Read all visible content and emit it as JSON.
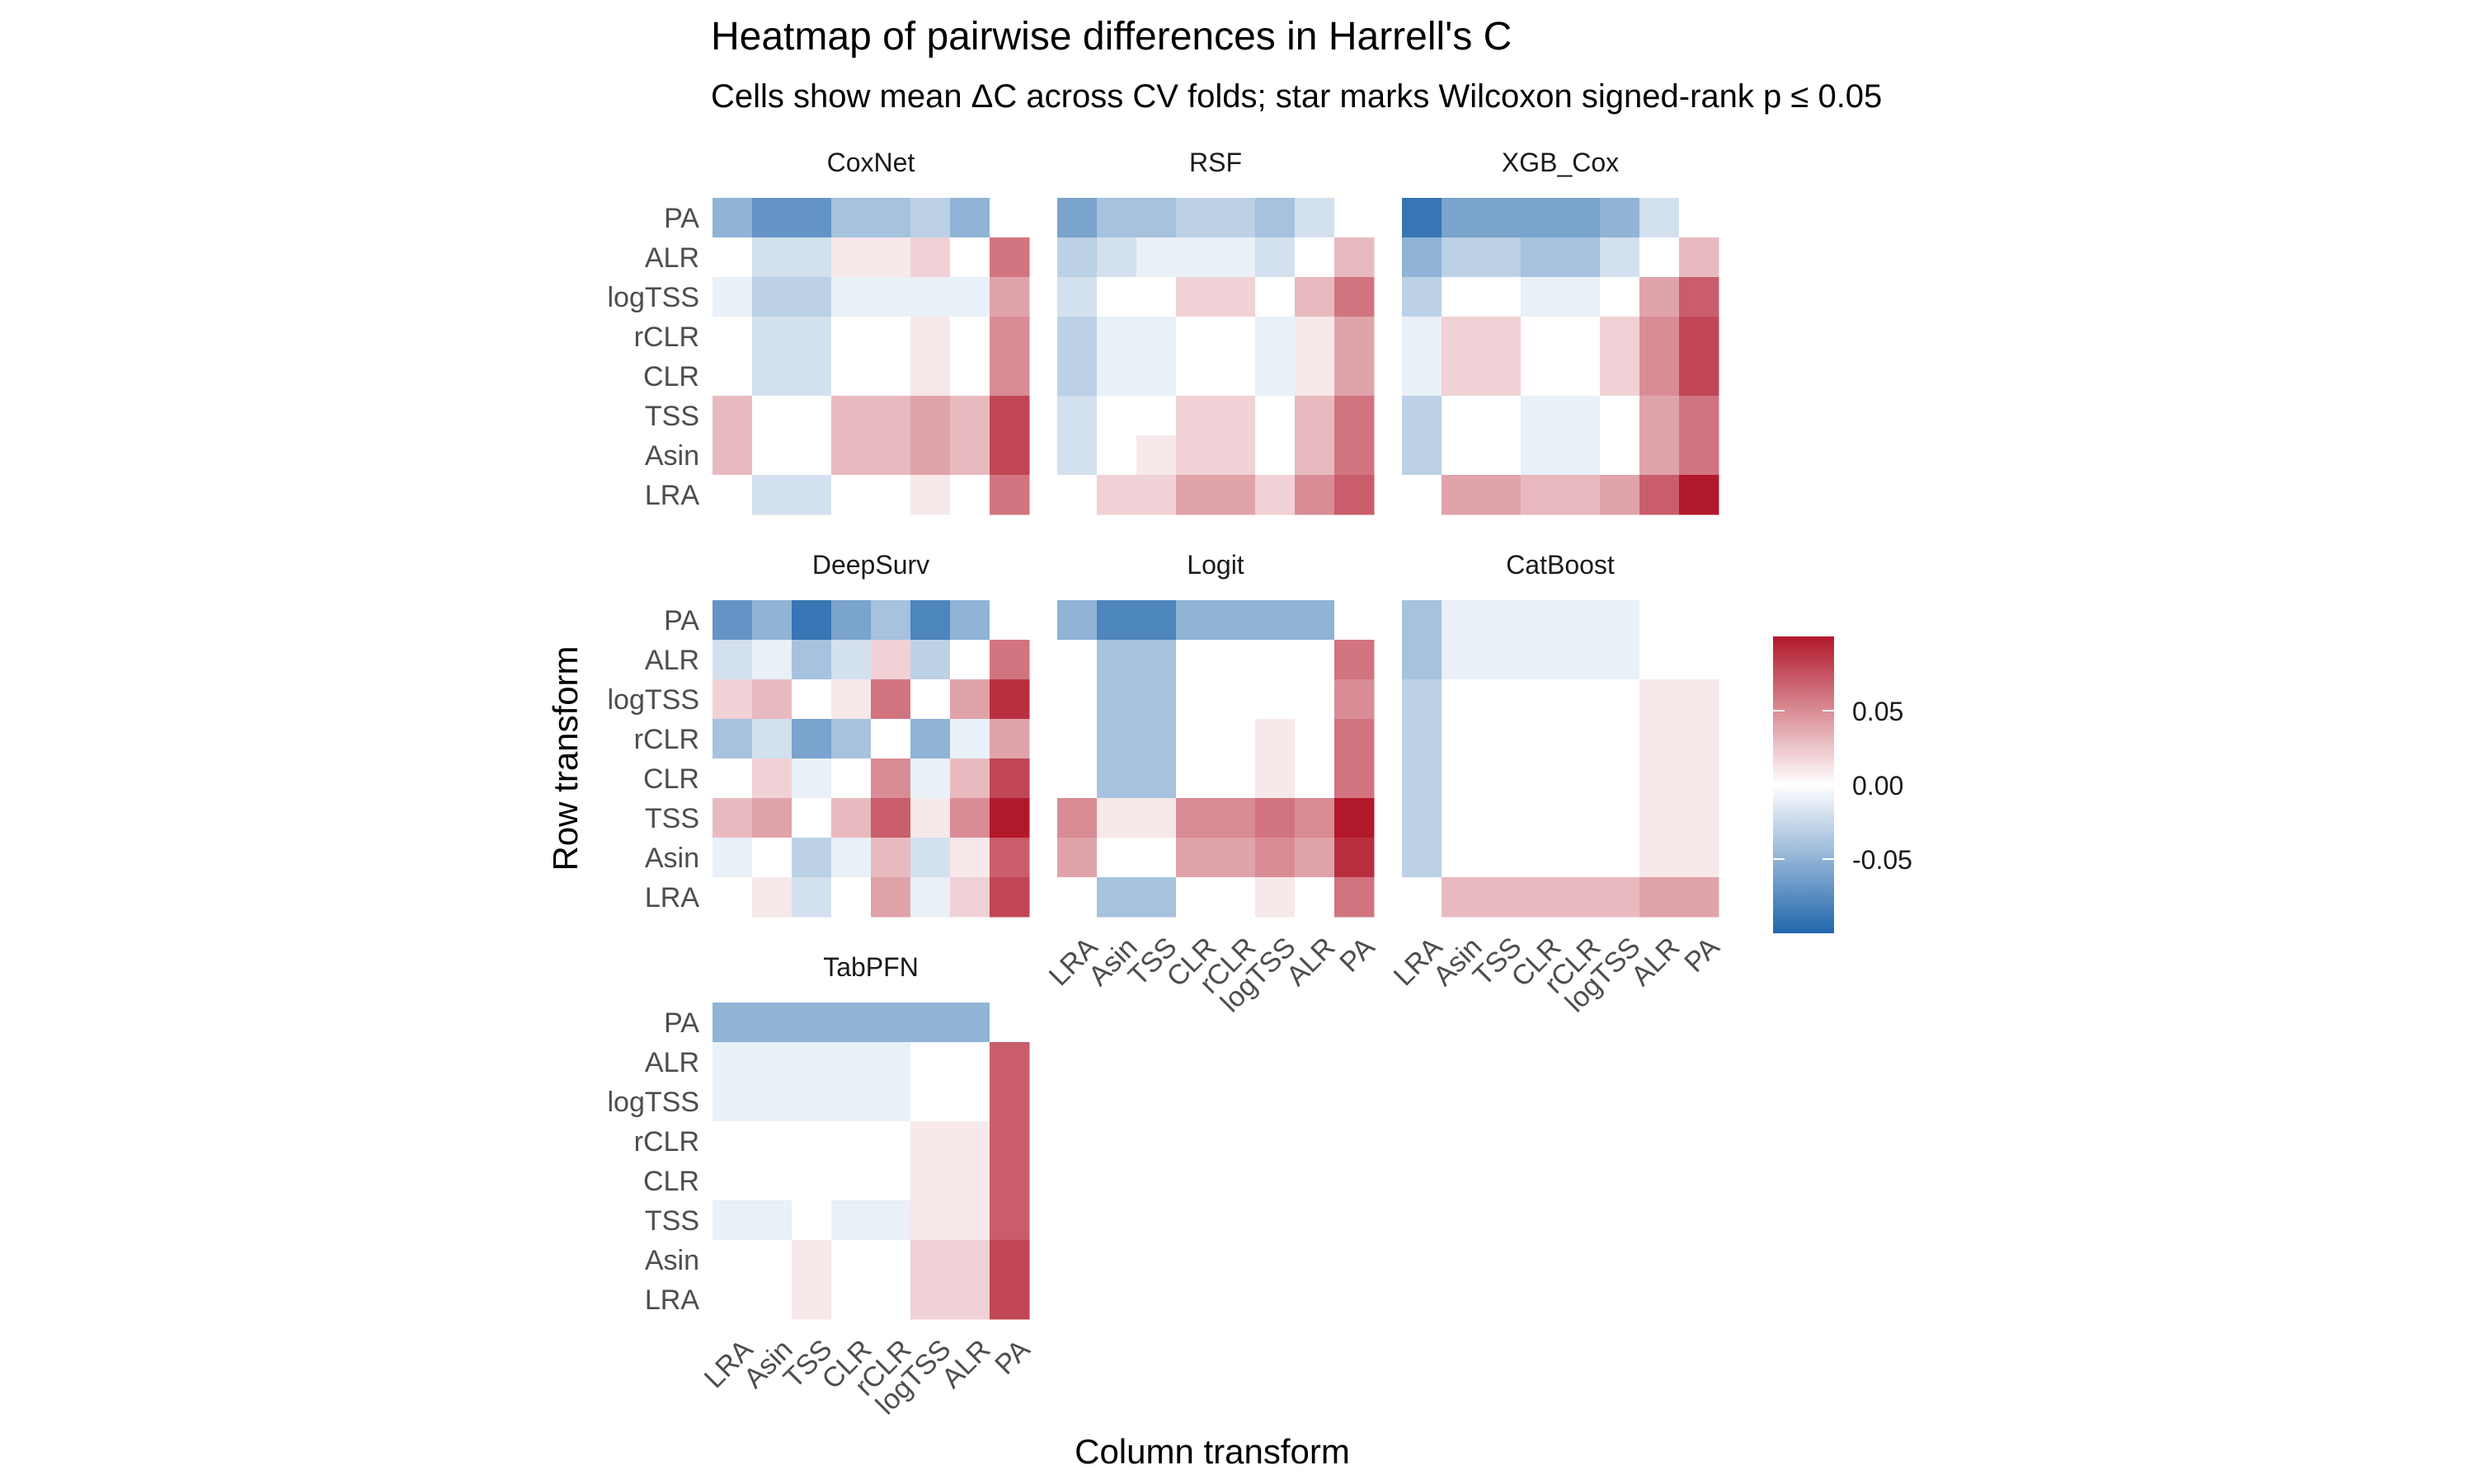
{
  "chart_data": {
    "type": "heatmap",
    "title": "Heatmap of pairwise differences in Harrell's C",
    "subtitle": "Cells show mean ΔC across CV folds; star marks Wilcoxon signed-rank p ≤ 0.05",
    "xlabel": "Column transform",
    "ylabel": "Row transform",
    "rows": [
      "PA",
      "ALR",
      "logTSS",
      "rCLR",
      "CLR",
      "TSS",
      "Asin",
      "LRA"
    ],
    "columns": [
      "LRA",
      "Asin",
      "TSS",
      "CLR",
      "rCLR",
      "logTSS",
      "ALR",
      "PA"
    ],
    "color_scale": {
      "min": -0.1,
      "mid": 0.0,
      "max": 0.1,
      "low_color": "#2166ac",
      "mid_color": "#ffffff",
      "high_color": "#b2182b",
      "legend_ticks": [
        0.05,
        0.0,
        -0.05
      ],
      "legend_labels": [
        "0.05",
        "0.00",
        "-0.05"
      ]
    },
    "panels": [
      {
        "name": "CoxNet",
        "values": [
          [
            -0.05,
            -0.07,
            -0.07,
            -0.04,
            -0.04,
            -0.03,
            -0.05,
            0.0
          ],
          [
            0.0,
            -0.02,
            -0.02,
            0.01,
            0.01,
            0.02,
            0.0,
            0.06
          ],
          [
            -0.01,
            -0.03,
            -0.03,
            -0.01,
            -0.01,
            -0.01,
            -0.01,
            0.04
          ],
          [
            0.0,
            -0.02,
            -0.02,
            0.0,
            0.0,
            0.01,
            0.0,
            0.05
          ],
          [
            0.0,
            -0.02,
            -0.02,
            0.0,
            0.0,
            0.01,
            0.0,
            0.05
          ],
          [
            0.03,
            0.0,
            0.0,
            0.03,
            0.03,
            0.04,
            0.03,
            0.08
          ],
          [
            0.03,
            0.0,
            0.0,
            0.03,
            0.03,
            0.04,
            0.03,
            0.08
          ],
          [
            0.0,
            -0.02,
            -0.02,
            0.0,
            0.0,
            0.01,
            0.0,
            0.06
          ]
        ]
      },
      {
        "name": "RSF",
        "values": [
          [
            -0.06,
            -0.04,
            -0.04,
            -0.03,
            -0.03,
            -0.04,
            -0.02,
            0.0
          ],
          [
            -0.03,
            -0.02,
            -0.01,
            -0.01,
            -0.01,
            -0.02,
            0.0,
            0.03
          ],
          [
            -0.02,
            0.0,
            0.0,
            0.02,
            0.02,
            0.0,
            0.03,
            0.06
          ],
          [
            -0.03,
            -0.01,
            -0.01,
            0.0,
            0.0,
            -0.01,
            0.01,
            0.04
          ],
          [
            -0.03,
            -0.01,
            -0.01,
            0.0,
            0.0,
            -0.01,
            0.01,
            0.04
          ],
          [
            -0.02,
            0.0,
            0.0,
            0.02,
            0.02,
            0.0,
            0.03,
            0.06
          ],
          [
            -0.02,
            0.0,
            0.01,
            0.02,
            0.02,
            0.0,
            0.03,
            0.06
          ],
          [
            0.0,
            0.02,
            0.02,
            0.04,
            0.04,
            0.02,
            0.05,
            0.07
          ]
        ]
      },
      {
        "name": "XGB_Cox",
        "values": [
          [
            -0.09,
            -0.06,
            -0.06,
            -0.06,
            -0.06,
            -0.05,
            -0.02,
            0.0
          ],
          [
            -0.05,
            -0.03,
            -0.03,
            -0.04,
            -0.04,
            -0.02,
            0.0,
            0.03
          ],
          [
            -0.03,
            0.0,
            0.0,
            -0.01,
            -0.01,
            0.0,
            0.04,
            0.07
          ],
          [
            -0.01,
            0.02,
            0.02,
            0.0,
            0.0,
            0.02,
            0.05,
            0.08
          ],
          [
            -0.01,
            0.02,
            0.02,
            0.0,
            0.0,
            0.02,
            0.05,
            0.08
          ],
          [
            -0.03,
            0.0,
            0.0,
            -0.01,
            -0.01,
            0.0,
            0.04,
            0.06
          ],
          [
            -0.03,
            0.0,
            0.0,
            -0.01,
            -0.01,
            0.0,
            0.04,
            0.06
          ],
          [
            0.0,
            0.04,
            0.04,
            0.03,
            0.03,
            0.04,
            0.07,
            0.1
          ]
        ]
      },
      {
        "name": "DeepSurv",
        "values": [
          [
            -0.07,
            -0.05,
            -0.09,
            -0.06,
            -0.04,
            -0.08,
            -0.05,
            0.0
          ],
          [
            -0.02,
            -0.01,
            -0.04,
            -0.02,
            0.02,
            -0.03,
            0.0,
            0.06
          ],
          [
            0.02,
            0.03,
            0.0,
            0.01,
            0.06,
            0.0,
            0.04,
            0.09
          ],
          [
            -0.04,
            -0.02,
            -0.06,
            -0.04,
            0.0,
            -0.05,
            -0.01,
            0.04
          ],
          [
            0.0,
            0.02,
            -0.01,
            0.0,
            0.05,
            -0.01,
            0.03,
            0.08
          ],
          [
            0.03,
            0.04,
            0.0,
            0.03,
            0.07,
            0.01,
            0.05,
            0.1
          ],
          [
            -0.01,
            0.0,
            -0.03,
            -0.01,
            0.03,
            -0.02,
            0.01,
            0.07
          ],
          [
            0.0,
            0.01,
            -0.02,
            0.0,
            0.04,
            -0.01,
            0.02,
            0.08
          ]
        ]
      },
      {
        "name": "Logit",
        "values": [
          [
            -0.05,
            -0.08,
            -0.08,
            -0.05,
            -0.05,
            -0.05,
            -0.05,
            0.0
          ],
          [
            0.0,
            -0.04,
            -0.04,
            0.0,
            0.0,
            0.0,
            0.0,
            0.06
          ],
          [
            0.0,
            -0.04,
            -0.04,
            0.0,
            0.0,
            0.0,
            0.0,
            0.05
          ],
          [
            0.0,
            -0.04,
            -0.04,
            0.0,
            0.0,
            0.01,
            0.0,
            0.06
          ],
          [
            0.0,
            -0.04,
            -0.04,
            0.0,
            0.0,
            0.01,
            0.0,
            0.06
          ],
          [
            0.05,
            0.01,
            0.01,
            0.05,
            0.05,
            0.06,
            0.05,
            0.1
          ],
          [
            0.04,
            0.0,
            0.0,
            0.04,
            0.04,
            0.05,
            0.04,
            0.09
          ],
          [
            0.0,
            -0.04,
            -0.04,
            0.0,
            0.0,
            0.01,
            0.0,
            0.06
          ]
        ]
      },
      {
        "name": "CatBoost",
        "values": [
          [
            -0.04,
            -0.01,
            -0.01,
            -0.01,
            -0.01,
            -0.01,
            0.0,
            0.0
          ],
          [
            -0.04,
            -0.01,
            -0.01,
            -0.01,
            -0.01,
            -0.01,
            0.0,
            0.0
          ],
          [
            -0.03,
            0.0,
            0.0,
            0.0,
            0.0,
            0.0,
            0.01,
            0.01
          ],
          [
            -0.03,
            0.0,
            0.0,
            0.0,
            0.0,
            0.0,
            0.01,
            0.01
          ],
          [
            -0.03,
            0.0,
            0.0,
            0.0,
            0.0,
            0.0,
            0.01,
            0.01
          ],
          [
            -0.03,
            0.0,
            0.0,
            0.0,
            0.0,
            0.0,
            0.01,
            0.01
          ],
          [
            -0.03,
            0.0,
            0.0,
            0.0,
            0.0,
            0.0,
            0.01,
            0.01
          ],
          [
            0.0,
            0.03,
            0.03,
            0.03,
            0.03,
            0.03,
            0.04,
            0.04
          ]
        ]
      },
      {
        "name": "TabPFN",
        "values": [
          [
            -0.05,
            -0.05,
            -0.05,
            -0.05,
            -0.05,
            -0.05,
            -0.05,
            0.0
          ],
          [
            -0.01,
            -0.01,
            -0.01,
            -0.01,
            -0.01,
            0.0,
            0.0,
            0.07
          ],
          [
            -0.01,
            -0.01,
            -0.01,
            -0.01,
            -0.01,
            0.0,
            0.0,
            0.07
          ],
          [
            0.0,
            0.0,
            0.0,
            0.0,
            0.0,
            0.01,
            0.01,
            0.07
          ],
          [
            0.0,
            0.0,
            0.0,
            0.0,
            0.0,
            0.01,
            0.01,
            0.07
          ],
          [
            -0.01,
            -0.01,
            0.0,
            -0.01,
            -0.01,
            0.01,
            0.01,
            0.07
          ],
          [
            0.0,
            0.0,
            0.01,
            0.0,
            0.0,
            0.02,
            0.02,
            0.08
          ],
          [
            0.0,
            0.0,
            0.01,
            0.0,
            0.0,
            0.02,
            0.02,
            0.08
          ]
        ]
      }
    ]
  }
}
